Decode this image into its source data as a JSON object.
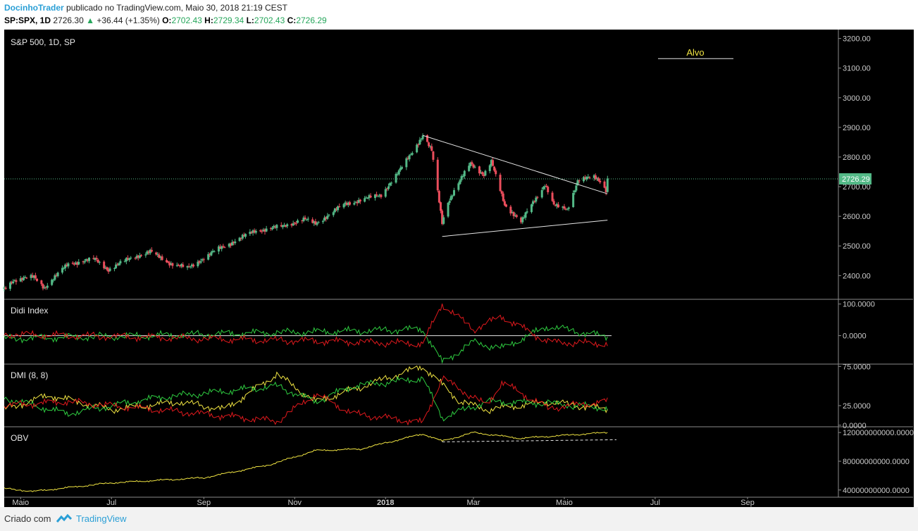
{
  "header": {
    "author": "DocinhoTrader",
    "published": "publicado no TradingView.com, Maio 30, 2018 21:19 CEST",
    "symbol": "SP:SPX, 1D",
    "last": "2726.30",
    "up_arrow": "▲",
    "change": "+36.44 (+1.35%)",
    "o_label": "O:",
    "o_val": "2702.43",
    "h_label": "H:",
    "h_val": "2729.34",
    "l_label": "L:",
    "l_val": "2702.43",
    "c_label": "C:",
    "c_val": "2726.29"
  },
  "footer": {
    "created": "Criado com",
    "brand": "TradingView"
  },
  "colors": {
    "background": "#000000",
    "up": "#53b987",
    "down": "#eb4d5c",
    "axis_text": "#cccccc",
    "price_tag": "#53b987",
    "yellow": "#f0e442",
    "green": "#2ecc40",
    "red": "#e0191d"
  },
  "chart_data": [
    {
      "type": "candlestick",
      "title": "S&P 500, 1D, SP",
      "ylim": [
        2320,
        3230
      ],
      "yticks": [
        "3200.00",
        "3100.00",
        "3000.00",
        "2900.00",
        "2800.00",
        "2700.00",
        "2600.00",
        "2500.00",
        "2400.00"
      ],
      "last_price_tag": "2726.29",
      "annotation": "Alvo",
      "x_ticks": [
        "Maio",
        "Jul",
        "Sep",
        "Nov",
        "2018",
        "Mar",
        "Maio",
        "Jul",
        "Sep"
      ],
      "x_range": [
        "2017-04-20",
        "2018-11-01"
      ],
      "x_tick_dates": [
        "2017-05-01",
        "2017-07-01",
        "2017-09-01",
        "2017-11-01",
        "2018-01-01",
        "2018-03-01",
        "2018-05-01",
        "2018-07-01",
        "2018-09-01"
      ],
      "price_anchors": [
        [
          "2017-04-20",
          2355
        ],
        [
          "2017-04-26",
          2385
        ],
        [
          "2017-05-10",
          2395
        ],
        [
          "2017-05-17",
          2360
        ],
        [
          "2017-06-02",
          2440
        ],
        [
          "2017-06-20",
          2455
        ],
        [
          "2017-06-29",
          2420
        ],
        [
          "2017-07-14",
          2460
        ],
        [
          "2017-07-27",
          2480
        ],
        [
          "2017-08-10",
          2440
        ],
        [
          "2017-08-21",
          2425
        ],
        [
          "2017-09-11",
          2490
        ],
        [
          "2017-10-05",
          2550
        ],
        [
          "2017-10-23",
          2565
        ],
        [
          "2017-11-07",
          2590
        ],
        [
          "2017-11-15",
          2575
        ],
        [
          "2017-12-04",
          2640
        ],
        [
          "2017-12-29",
          2673
        ],
        [
          "2018-01-10",
          2750
        ],
        [
          "2018-01-26",
          2873
        ],
        [
          "2018-02-01",
          2820
        ],
        [
          "2018-02-08",
          2581
        ],
        [
          "2018-02-12",
          2650
        ],
        [
          "2018-02-27",
          2780
        ],
        [
          "2018-03-08",
          2740
        ],
        [
          "2018-03-13",
          2783
        ],
        [
          "2018-03-22",
          2640
        ],
        [
          "2018-04-02",
          2580
        ],
        [
          "2018-04-09",
          2640
        ],
        [
          "2018-04-18",
          2708
        ],
        [
          "2018-04-24",
          2635
        ],
        [
          "2018-05-03",
          2625
        ],
        [
          "2018-05-10",
          2720
        ],
        [
          "2018-05-21",
          2733
        ],
        [
          "2018-05-25",
          2721
        ],
        [
          "2018-05-29",
          2689
        ],
        [
          "2018-05-30",
          2726
        ]
      ],
      "trend_lines": [
        {
          "from": [
            "2018-01-26",
            2873
          ],
          "to": [
            "2018-05-30",
            2676
          ]
        },
        {
          "from": [
            "2018-02-08",
            2532
          ],
          "to": [
            "2018-05-30",
            2587
          ]
        }
      ]
    },
    {
      "type": "line",
      "title": "Didi Index",
      "ylim": [
        -90,
        115
      ],
      "yticks": [
        "100.0000",
        "0.0000"
      ],
      "series": [
        {
          "color": "green",
          "anchors": [
            [
              "2017-04-20",
              -10
            ],
            [
              "2018-01-26",
              20
            ],
            [
              "2018-02-08",
              -85
            ],
            [
              "2018-03-01",
              -20
            ],
            [
              "2018-03-20",
              -40
            ],
            [
              "2018-04-20",
              30
            ],
            [
              "2018-05-30",
              -5
            ]
          ]
        },
        {
          "color": "red",
          "anchors": [
            [
              "2017-04-20",
              5
            ],
            [
              "2018-01-26",
              -25
            ],
            [
              "2018-02-08",
              100
            ],
            [
              "2018-03-01",
              20
            ],
            [
              "2018-03-20",
              60
            ],
            [
              "2018-04-20",
              -20
            ],
            [
              "2018-05-30",
              -25
            ]
          ]
        }
      ]
    },
    {
      "type": "line",
      "title": "DMI (8, 8)",
      "ylim": [
        -2,
        78
      ],
      "yticks": [
        "75.0000",
        "25.0000",
        "0.0000"
      ],
      "series": [
        {
          "color": "yellow",
          "anchors": [
            [
              "2017-04-20",
              20
            ],
            [
              "2017-05-20",
              38
            ],
            [
              "2017-07-01",
              20
            ],
            [
              "2017-08-15",
              30
            ],
            [
              "2017-09-15",
              20
            ],
            [
              "2017-10-20",
              65
            ],
            [
              "2017-11-15",
              30
            ],
            [
              "2018-01-26",
              75
            ],
            [
              "2018-02-20",
              30
            ],
            [
              "2018-03-10",
              20
            ],
            [
              "2018-04-20",
              30
            ],
            [
              "2018-05-30",
              20
            ]
          ]
        },
        {
          "color": "green",
          "anchors": [
            [
              "2017-04-20",
              35
            ],
            [
              "2017-06-01",
              15
            ],
            [
              "2017-08-01",
              35
            ],
            [
              "2017-10-20",
              50
            ],
            [
              "2017-11-15",
              30
            ],
            [
              "2017-12-10",
              50
            ],
            [
              "2018-01-26",
              60
            ],
            [
              "2018-02-08",
              10
            ],
            [
              "2018-03-10",
              30
            ],
            [
              "2018-04-20",
              28
            ],
            [
              "2018-05-30",
              22
            ]
          ]
        },
        {
          "color": "red",
          "anchors": [
            [
              "2017-04-20",
              25
            ],
            [
              "2017-06-01",
              30
            ],
            [
              "2017-08-01",
              20
            ],
            [
              "2017-10-20",
              5
            ],
            [
              "2017-11-15",
              40
            ],
            [
              "2017-12-10",
              15
            ],
            [
              "2018-01-26",
              3
            ],
            [
              "2018-02-08",
              60
            ],
            [
              "2018-03-10",
              25
            ],
            [
              "2018-03-20",
              55
            ],
            [
              "2018-04-20",
              22
            ],
            [
              "2018-05-30",
              30
            ]
          ]
        }
      ]
    },
    {
      "type": "line",
      "title": "OBV",
      "ylim": [
        30000000000,
        128000000000
      ],
      "yticks": [
        "120000000000.0000",
        "80000000000.0000",
        "40000000000.0000"
      ],
      "series": [
        {
          "color": "yellow",
          "anchors": [
            [
              "2017-04-20",
              42000000000
            ],
            [
              "2017-05-10",
              38000000000
            ],
            [
              "2017-07-01",
              50000000000
            ],
            [
              "2017-09-01",
              57000000000
            ],
            [
              "2017-10-15",
              75000000000
            ],
            [
              "2017-11-15",
              95000000000
            ],
            [
              "2017-12-15",
              97000000000
            ],
            [
              "2018-01-26",
              118000000000
            ],
            [
              "2018-02-08",
              108000000000
            ],
            [
              "2018-03-01",
              120000000000
            ],
            [
              "2018-04-01",
              112000000000
            ],
            [
              "2018-05-30",
              120000000000
            ]
          ]
        }
      ],
      "support_line": {
        "from": [
          "2018-02-08",
          107000000000
        ],
        "to": [
          "2018-06-05",
          110000000000
        ]
      }
    }
  ]
}
